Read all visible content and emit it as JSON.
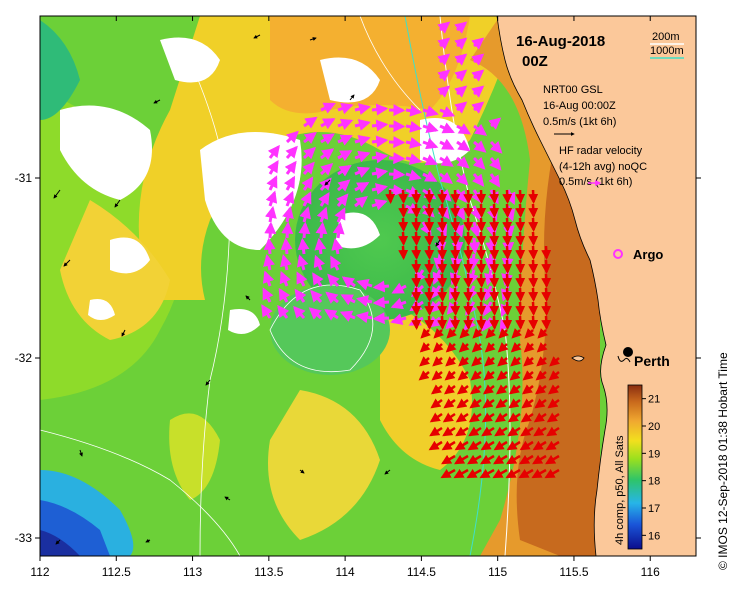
{
  "map": {
    "date": "16-Aug-2018",
    "time": "00Z",
    "credit": "© IMOS 12-Sep-2018 01:38 Hobart Time",
    "lon_ticks": [
      "112",
      "112.5",
      "113",
      "113.5",
      "114",
      "114.5",
      "115",
      "115.5",
      "116"
    ],
    "lat_ticks": [
      "-31",
      "-32",
      "-33"
    ],
    "lon_range": [
      112,
      116.3
    ],
    "lat_range": [
      -30.1,
      -33.1
    ],
    "depth_legend": [
      "200m",
      "1000m"
    ],
    "nrt_block": {
      "line1": "NRT00 GSL",
      "line2": "16-Aug 00:00Z",
      "line3": "0.5m/s (1kt 6h)"
    },
    "hf_block": {
      "line1": "HF radar velocity",
      "line2": "(4-12h avg) noQC",
      "line3": "0.5m/s (1kt 6h)"
    },
    "argo_label": "Argo",
    "city_label": "Perth",
    "colorbar": {
      "title": "4h comp, p50, All Sats",
      "ticks": [
        "21",
        "20",
        "19",
        "18",
        "17",
        "16"
      ],
      "min": 15.5,
      "max": 21.5
    },
    "colors": {
      "land": "#fbc89a",
      "coast": "#000000",
      "hf_arrow": "#ff33ff",
      "gsl_arrow_red": "#e60000",
      "depth200": "#ffffff",
      "depth1000": "#40e0c8",
      "argo": "#ff33ff"
    }
  }
}
